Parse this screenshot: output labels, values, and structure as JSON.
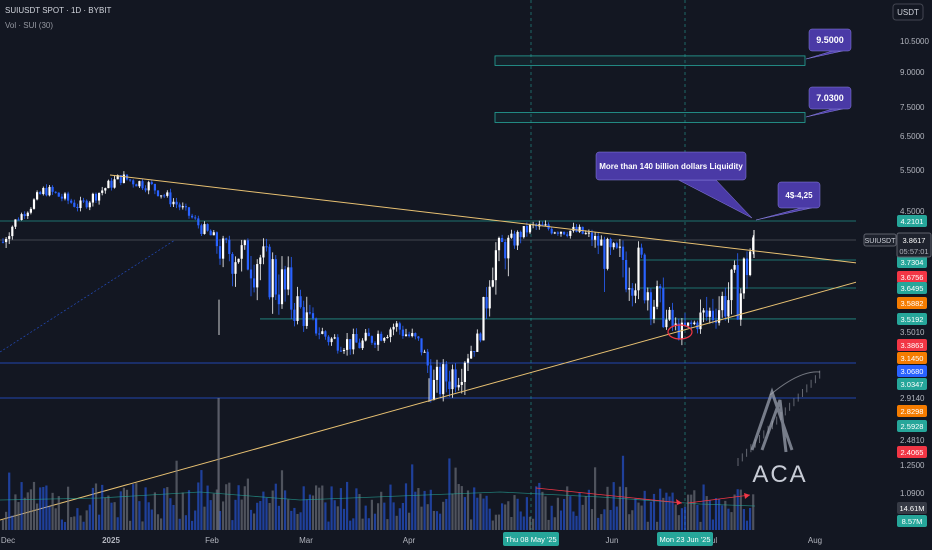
{
  "header": {
    "symbol_line": "SUIUSDT SPOT · 1D · BYBIT",
    "volume_line": "Vol · SUI (30)"
  },
  "currency_button": "USDT",
  "chart_data": {
    "type": "candlestick",
    "price_scale": "log",
    "ylim": [
      1.0,
      13.0
    ],
    "price_ticks": [
      10.5,
      9.0,
      7.5,
      6.5,
      5.5,
      4.5,
      3.501,
      2.914,
      2.481,
      1.25,
      1.09
    ],
    "x_tick_labels": [
      "Dec",
      "2025",
      "Feb",
      "Mar",
      "Apr",
      "Jun",
      "Jul",
      "Aug"
    ],
    "price_badges": [
      {
        "value": "4.2101",
        "color": "#26a69a"
      },
      {
        "value": "3.7304",
        "color": "#26a69a"
      },
      {
        "value": "3.6756",
        "color": "#f23645"
      },
      {
        "value": "3.6495",
        "color": "#26a69a"
      },
      {
        "value": "3.5882",
        "color": "#f57c00"
      },
      {
        "value": "3.5192",
        "color": "#26a69a"
      },
      {
        "value": "3.3863",
        "color": "#f23645"
      },
      {
        "value": "3.1450",
        "color": "#f57c00"
      },
      {
        "value": "3.0680",
        "color": "#2962ff"
      },
      {
        "value": "3.0347",
        "color": "#26a69a"
      },
      {
        "value": "2.8298",
        "color": "#f57c00"
      },
      {
        "value": "2.5928",
        "color": "#26a69a"
      },
      {
        "value": "2.4065",
        "color": "#f23645"
      }
    ],
    "current_price": {
      "symbol": "SUIUSDT",
      "value": "3.8617",
      "countdown": "05:57:01"
    },
    "crosshair_labels": [
      "Thu 08 May '25",
      "Mon 23 Jun '25"
    ],
    "volume_badges": [
      {
        "value": "14.61M",
        "color": "#363a45"
      },
      {
        "value": "8.57M",
        "color": "#26a69a"
      }
    ],
    "horizontal_levels": [
      4.2101,
      3.8617,
      3.7304,
      3.6495,
      3.5192,
      3.068,
      2.914
    ],
    "target_zones": [
      {
        "label": "9.5000",
        "low": 9.3,
        "high": 9.75
      },
      {
        "label": "7.0300",
        "low": 6.95,
        "high": 7.3
      }
    ],
    "annotations": {
      "liquidity": "More than 140 billion dollars Liquidity",
      "range": "4$-4,25"
    },
    "watermark": "ACA"
  },
  "colors": {
    "background": "#131722",
    "up": "#ffffff",
    "down": "#2962ff",
    "trendline": "#e8c172",
    "level": "#26a69a",
    "callout": "#4a3aa6",
    "arrow": "#f23645"
  }
}
